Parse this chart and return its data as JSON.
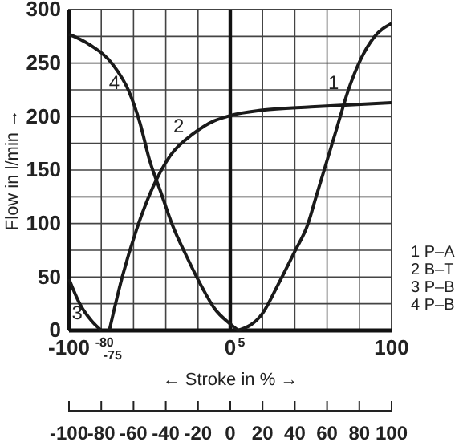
{
  "chart_data": {
    "type": "line",
    "xlabel": "← Stroke in % →",
    "ylabel": "Flow in l/min →",
    "series": [
      {
        "name": "1 P–A",
        "color": "#1a1a1a",
        "x": [
          5,
          20,
          30,
          40,
          48,
          53,
          60,
          66,
          73,
          81,
          89,
          100
        ],
        "values": [
          0,
          16,
          44,
          74,
          99,
          124,
          159,
          189,
          224,
          254,
          274,
          287
        ]
      },
      {
        "name": "2 B–T",
        "color": "#1a1a1a",
        "x": [
          -75,
          -67,
          -58,
          -48,
          -37,
          -23,
          -10,
          0,
          20,
          50,
          100
        ],
        "values": [
          0,
          50,
          95,
          134,
          164,
          184,
          196,
          201,
          206,
          209,
          213
        ]
      },
      {
        "name": "3 P–B",
        "color": "#1a1a1a",
        "x": [
          -100,
          -93,
          -86,
          -80
        ],
        "values": [
          48,
          24,
          9,
          0
        ]
      },
      {
        "name": "4 P–B",
        "color": "#1a1a1a",
        "x": [
          -100,
          -87,
          -73,
          -63,
          -56,
          -50,
          -43,
          -36,
          -27,
          -17,
          -10,
          0,
          5
        ],
        "values": [
          277,
          267,
          249,
          224,
          194,
          159,
          129,
          99,
          69,
          39,
          21,
          6,
          0
        ]
      }
    ],
    "xlim": [
      -100,
      100
    ],
    "ylim": [
      0,
      300
    ],
    "xticks": [
      -100,
      {
        "value": -80,
        "label": null
      },
      {
        "value": -60,
        "label": null
      },
      {
        "value": -40,
        "label": null
      },
      {
        "value": -20,
        "label": null
      },
      0,
      {
        "value": 20,
        "label": null
      },
      {
        "value": 40,
        "label": null
      },
      {
        "value": 60,
        "label": null
      },
      {
        "value": 80,
        "label": null
      },
      100
    ],
    "yticks": [
      0,
      {
        "value": 25,
        "label": null
      },
      50,
      {
        "value": 75,
        "label": null
      },
      100,
      {
        "value": 125,
        "label": null
      },
      150,
      {
        "value": 175,
        "label": null
      },
      200,
      {
        "value": 225,
        "label": null
      },
      250,
      {
        "value": 275,
        "label": null
      },
      300
    ],
    "x2lim": [
      -100,
      100
    ],
    "x2ticks": [
      -100,
      -80,
      -60,
      -40,
      -20,
      0,
      20,
      40,
      60,
      80,
      100
    ],
    "ref_lines": [
      {
        "axis": "x",
        "value": 0
      }
    ],
    "annotations": [
      {
        "text": "-80",
        "x": -80,
        "y": 0
      },
      {
        "text": "-75",
        "x": -75,
        "y": 0
      },
      {
        "text": "5",
        "x": 5,
        "y": 0
      },
      {
        "text": "1",
        "x": 73,
        "y": 224
      },
      {
        "text": "2",
        "x": -23,
        "y": 184
      },
      {
        "text": "3",
        "x": -86,
        "y": 9
      },
      {
        "text": "4",
        "x": -63,
        "y": 224
      }
    ],
    "grid": true,
    "legend": "right",
    "marker": "none",
    "line_style": "solid"
  }
}
